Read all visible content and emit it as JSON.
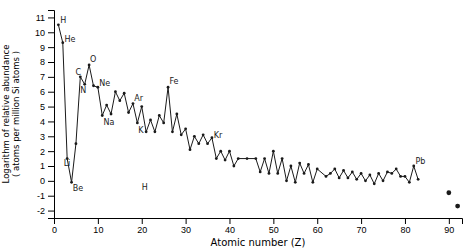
{
  "chart_data": {
    "type": "line",
    "xlabel": "Atomic number (Z)",
    "ylabel": "Logarithm of relative abundance\n( atoms per million Si atoms )",
    "xlim": [
      0,
      93
    ],
    "ylim": [
      -2.5,
      11.5
    ],
    "xticks": [
      0,
      10,
      20,
      30,
      40,
      50,
      60,
      70,
      80,
      90
    ],
    "yticks": [
      -2,
      -1,
      0,
      1,
      2,
      3,
      4,
      5,
      6,
      7,
      8,
      9,
      10,
      11
    ],
    "x": [
      1,
      2,
      3,
      4,
      5,
      6,
      7,
      8,
      9,
      10,
      11,
      12,
      13,
      14,
      15,
      16,
      17,
      18,
      19,
      20,
      21,
      22,
      23,
      24,
      25,
      26,
      27,
      28,
      29,
      30,
      31,
      32,
      33,
      34,
      35,
      36,
      37,
      38,
      39,
      40,
      41,
      42,
      44,
      46,
      47,
      48,
      49,
      50,
      51,
      52,
      53,
      54,
      55,
      56,
      57,
      58,
      59,
      60,
      62,
      63,
      64,
      65,
      66,
      67,
      68,
      69,
      70,
      71,
      72,
      73,
      74,
      75,
      76,
      77,
      78,
      79,
      80,
      81,
      82,
      83,
      90,
      92
    ],
    "series": [
      {
        "type": "line",
        "color": "#1a1a1a",
        "marker": "circle",
        "values": [
          10.5,
          9.3,
          1.5,
          -0.1,
          2.5,
          7.0,
          6.5,
          7.8,
          6.4,
          6.3,
          4.4,
          5.1,
          4.5,
          6.0,
          5.4,
          5.9,
          4.6,
          5.2,
          3.9,
          5.0,
          3.3,
          4.1,
          3.3,
          4.4,
          3.9,
          6.3,
          3.3,
          4.5,
          3.1,
          3.5,
          2.1,
          3.0,
          2.5,
          3.1,
          2.5,
          2.9,
          1.5,
          2.0,
          1.4,
          2.0,
          1.0,
          1.5,
          1.5,
          1.5,
          0.6,
          1.5,
          0.5,
          2.0,
          0.5,
          1.5,
          0.0,
          1.0,
          -0.1,
          1.2,
          0.5,
          1.1,
          -0.1,
          0.8,
          0.3,
          0.5,
          0.8,
          0.2,
          0.7,
          0.2,
          0.6,
          0.1,
          0.5,
          0.0,
          0.4,
          -0.2,
          0.5,
          0.0,
          0.6,
          0.5,
          0.8,
          0.3,
          0.3,
          -0.1,
          1.0,
          0.1,
          null,
          null
        ]
      },
      {
        "type": "scatter",
        "color": "#1a1a1a",
        "marker": "circle",
        "values": [
          null,
          null,
          null,
          null,
          null,
          null,
          null,
          null,
          null,
          null,
          null,
          null,
          null,
          null,
          null,
          null,
          null,
          null,
          null,
          null,
          null,
          null,
          null,
          null,
          null,
          null,
          null,
          null,
          null,
          null,
          null,
          null,
          null,
          null,
          null,
          null,
          null,
          null,
          null,
          null,
          null,
          null,
          null,
          null,
          null,
          null,
          null,
          null,
          null,
          null,
          null,
          null,
          null,
          null,
          null,
          null,
          null,
          null,
          null,
          null,
          null,
          null,
          null,
          null,
          null,
          null,
          null,
          null,
          null,
          null,
          null,
          null,
          null,
          null,
          null,
          null,
          null,
          null,
          null,
          null,
          -0.8,
          -1.7
        ]
      }
    ],
    "annotations": [
      {
        "text": "H",
        "x": 1,
        "y": 10.5,
        "dx": 0.4,
        "dy": 0.15
      },
      {
        "text": "He",
        "x": 2,
        "y": 9.3,
        "dx": 0.4,
        "dy": 0.05
      },
      {
        "text": "Li",
        "x": 3,
        "y": 1.5,
        "dx": -0.8,
        "dy": -0.5
      },
      {
        "text": "Be",
        "x": 4,
        "y": -0.1,
        "dx": 0.3,
        "dy": -0.55
      },
      {
        "text": "C",
        "x": 6,
        "y": 7.0,
        "dx": -1.1,
        "dy": 0.1
      },
      {
        "text": "N",
        "x": 7,
        "y": 6.5,
        "dx": -1.0,
        "dy": -0.6
      },
      {
        "text": "O",
        "x": 8,
        "y": 7.8,
        "dx": 0.2,
        "dy": 0.2
      },
      {
        "text": "Ne",
        "x": 10,
        "y": 6.3,
        "dx": 0.3,
        "dy": 0.1
      },
      {
        "text": "Na",
        "x": 11,
        "y": 4.4,
        "dx": 0.3,
        "dy": -0.65
      },
      {
        "text": "Ar",
        "x": 18,
        "y": 5.2,
        "dx": 0.3,
        "dy": 0.15
      },
      {
        "text": "K",
        "x": 19,
        "y": 3.9,
        "dx": 0.2,
        "dy": -0.65
      },
      {
        "text": "Fe",
        "x": 26,
        "y": 6.3,
        "dx": 0.3,
        "dy": 0.2
      },
      {
        "text": "Kr",
        "x": 36,
        "y": 2.9,
        "dx": 0.4,
        "dy": 0.0
      },
      {
        "text": "H",
        "x": 20,
        "y": 0.3,
        "dx": 0.0,
        "dy": -0.9
      },
      {
        "text": "Pb",
        "x": 82,
        "y": 1.0,
        "dx": 0.4,
        "dy": 0.15
      }
    ]
  }
}
